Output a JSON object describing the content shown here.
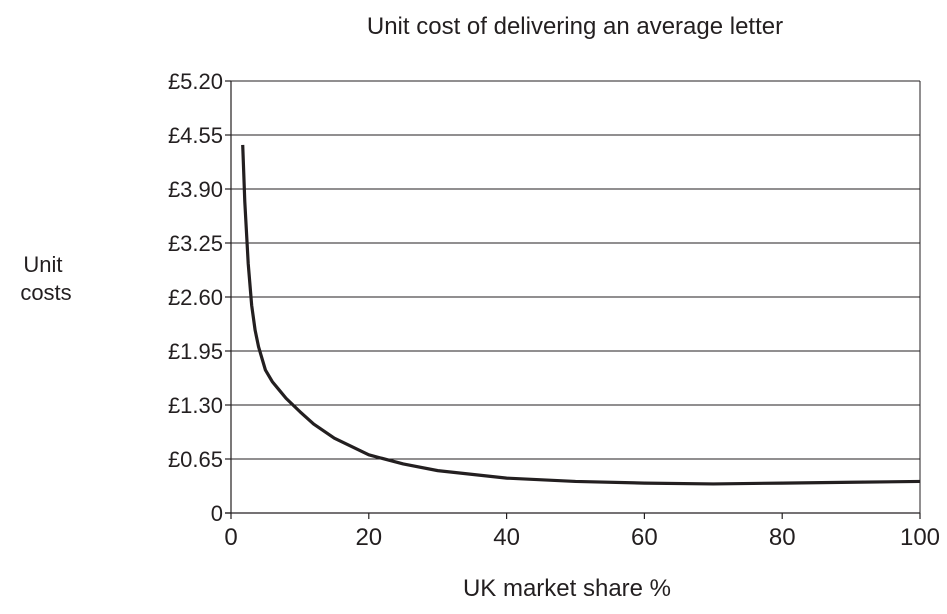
{
  "chart_data": {
    "type": "line",
    "title": "Unit cost of delivering an average letter",
    "xlabel": "UK market share %",
    "ylabel": "Unit costs",
    "xlim": [
      0,
      100
    ],
    "ylim": [
      0,
      5.2
    ],
    "x_ticks": [
      0,
      20,
      40,
      60,
      80,
      100
    ],
    "x_tick_labels": [
      "0",
      "20",
      "40",
      "60",
      "80",
      "100"
    ],
    "y_ticks": [
      0,
      0.65,
      1.3,
      1.95,
      2.6,
      3.25,
      3.9,
      4.55,
      5.2
    ],
    "y_tick_labels": [
      "0",
      "£0.65",
      "£1.30",
      "£1.95",
      "£2.60",
      "£3.25",
      "£3.90",
      "£4.55",
      "£5.20"
    ],
    "grid": "horizontal",
    "legend": "none",
    "series": [
      {
        "x": [
          1.7,
          2,
          2.5,
          3,
          3.5,
          4,
          5,
          6,
          7,
          8,
          10,
          12,
          15,
          20,
          25,
          30,
          40,
          50,
          60,
          70,
          80,
          90,
          100
        ],
        "values": [
          4.43,
          3.75,
          3.0,
          2.5,
          2.2,
          2.0,
          1.72,
          1.58,
          1.48,
          1.38,
          1.22,
          1.07,
          0.9,
          0.7,
          0.59,
          0.51,
          0.42,
          0.38,
          0.36,
          0.35,
          0.36,
          0.37,
          0.38
        ]
      }
    ],
    "colors": {
      "line": "#231f20",
      "grid": "#231f20",
      "axis": "#231f20"
    }
  }
}
